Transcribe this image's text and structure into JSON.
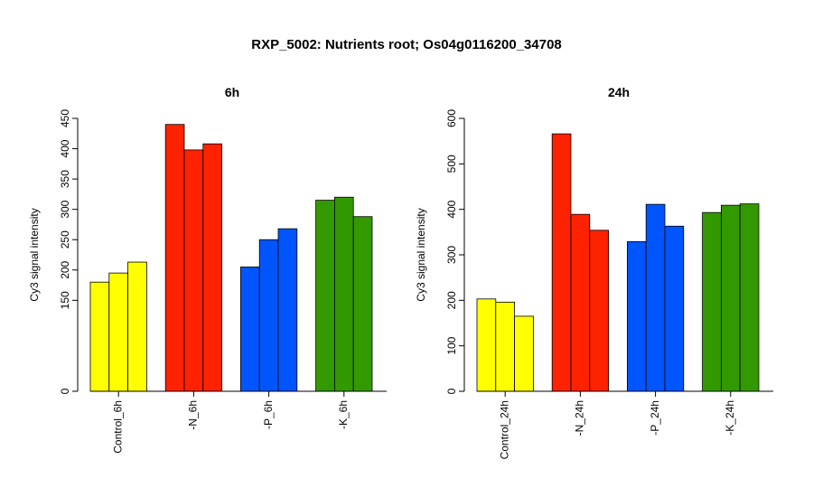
{
  "title": "RXP_5002: Nutrients root; Os04g0116200_34708",
  "chart_data": [
    {
      "type": "bar",
      "title": "6h",
      "xlabel": "",
      "ylabel": "Cy3 signal intensity",
      "ylim": [
        0,
        450
      ],
      "yticks": [
        0,
        150,
        200,
        250,
        300,
        350,
        400,
        450
      ],
      "groups": [
        {
          "label": "Control_6h",
          "color": "#ffff00",
          "values": [
            180,
            195,
            213
          ]
        },
        {
          "label": "-N_6h",
          "color": "#ff2200",
          "values": [
            440,
            398,
            408
          ]
        },
        {
          "label": "-P_6h",
          "color": "#0055ff",
          "values": [
            205,
            250,
            268
          ]
        },
        {
          "label": "-K_6h",
          "color": "#339900",
          "values": [
            315,
            320,
            288
          ]
        }
      ]
    },
    {
      "type": "bar",
      "title": "24h",
      "xlabel": "",
      "ylabel": "Cy3 signal intensity",
      "ylim": [
        0,
        600
      ],
      "yticks": [
        0,
        100,
        200,
        300,
        400,
        500,
        600
      ],
      "groups": [
        {
          "label": "Control_24h",
          "color": "#ffff00",
          "values": [
            203,
            196,
            165
          ]
        },
        {
          "label": "-N_24h",
          "color": "#ff2200",
          "values": [
            566,
            389,
            354
          ]
        },
        {
          "label": "-P_24h",
          "color": "#0055ff",
          "values": [
            329,
            411,
            363
          ]
        },
        {
          "label": "-K_24h",
          "color": "#339900",
          "values": [
            393,
            409,
            412
          ]
        }
      ]
    }
  ]
}
